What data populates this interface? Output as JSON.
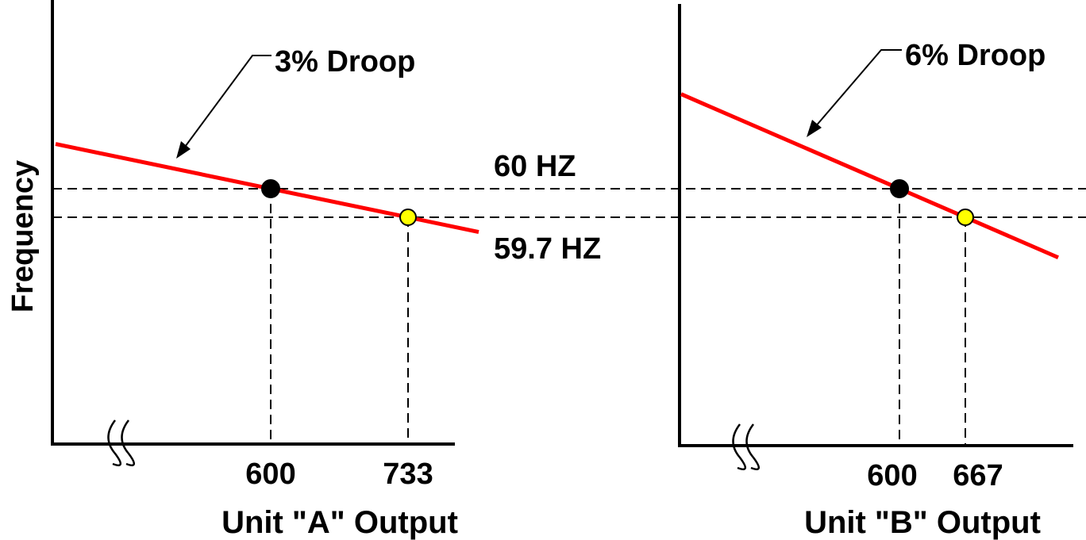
{
  "chart_data": [
    {
      "type": "line",
      "panel": "A",
      "xlabel": "Unit \"A\" Output",
      "ylabel": "Frequency",
      "annotation": "3% Droop",
      "droop_percent": 3,
      "x_ticks": [
        "600",
        "733"
      ],
      "y_reference_labels": [
        "60 HZ",
        "59.7 HZ"
      ],
      "points": [
        {
          "x": 600,
          "y": 60.0,
          "marker_color": "#000000"
        },
        {
          "x": 733,
          "y": 59.7,
          "marker_color": "#ffff00"
        }
      ],
      "line_color": "#ff0000",
      "axis_break": true
    },
    {
      "type": "line",
      "panel": "B",
      "xlabel": "Unit \"B\" Output",
      "annotation": "6% Droop",
      "droop_percent": 6,
      "x_ticks": [
        "600",
        "667"
      ],
      "points": [
        {
          "x": 600,
          "y": 60.0,
          "marker_color": "#000000"
        },
        {
          "x": 667,
          "y": 59.7,
          "marker_color": "#ffff00"
        }
      ],
      "line_color": "#ff0000",
      "axis_break": true
    }
  ]
}
